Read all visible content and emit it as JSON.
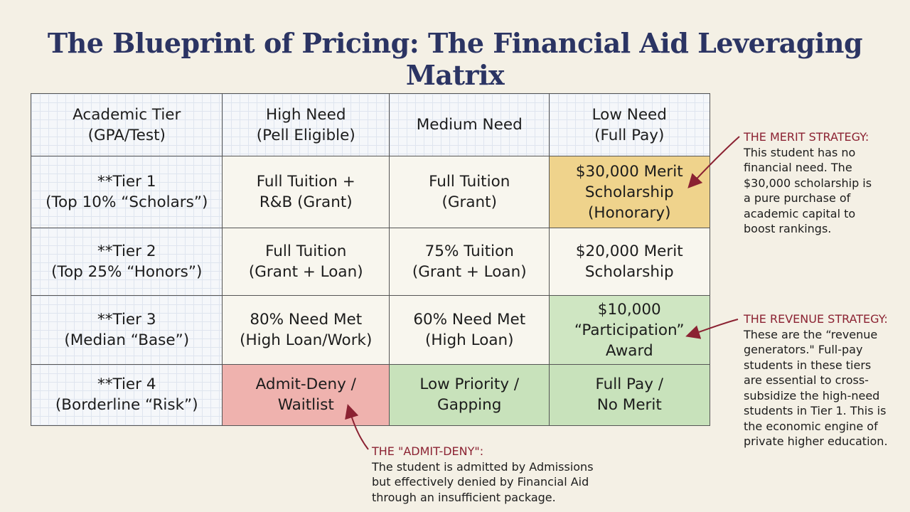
{
  "title": "The Blueprint of Pricing: The Financial Aid Leveraging Matrix",
  "table": {
    "header": [
      [
        "Academic Tier",
        "(GPA/Test)"
      ],
      [
        "High Need",
        "(Pell Eligible)"
      ],
      [
        "Medium Need"
      ],
      [
        "Low Need",
        "(Full Pay)"
      ]
    ],
    "rows": [
      [
        [
          "**Tier 1",
          "(Top 10% “Scholars”)"
        ],
        [
          "Full Tuition +",
          "R&B (Grant)"
        ],
        [
          "Full Tuition",
          "(Grant)"
        ],
        [
          "$30,000 Merit",
          "Scholarship",
          "(Honorary)"
        ]
      ],
      [
        [
          "**Tier 2",
          "(Top 25% “Honors”)"
        ],
        [
          "Full Tuition",
          "(Grant + Loan)"
        ],
        [
          "75% Tuition",
          "(Grant + Loan)"
        ],
        [
          "$20,000 Merit",
          "Scholarship"
        ]
      ],
      [
        [
          "**Tier 3",
          "(Median “Base”)"
        ],
        [
          "80% Need Met",
          "(High Loan/Work)"
        ],
        [
          "60% Need Met",
          "(High Loan)"
        ],
        [
          "$10,000",
          "“Participation”",
          "Award"
        ]
      ],
      [
        [
          "**Tier 4",
          "(Borderline “Risk”)"
        ],
        [
          "Admit-Deny /",
          "Waitlist"
        ],
        [
          "Low Priority /",
          "Gapping"
        ],
        [
          "Full Pay /",
          "No Merit"
        ]
      ]
    ]
  },
  "annotations": [
    {
      "title": "THE MERIT STRATEGY:",
      "lines": [
        "This student has no",
        "financial need. The",
        "$30,000 scholarship is",
        "a pure purchase of",
        "academic capital to",
        "boost rankings."
      ]
    },
    {
      "title": "THE REVENUE STRATEGY:",
      "lines": [
        "These are the “revenue",
        "generators.\" Full-pay",
        "students in these tiers",
        "are essential to cross-",
        "subsidize the high-need",
        "students in Tier 1. This is",
        "the economic engine of",
        "private higher education."
      ]
    },
    {
      "title": "THE \"ADMIT-DENY\":",
      "lines": [
        "The student is admitted by Admissions",
        "but effectively denied by Financial Aid",
        "through an insufficient package."
      ]
    }
  ]
}
